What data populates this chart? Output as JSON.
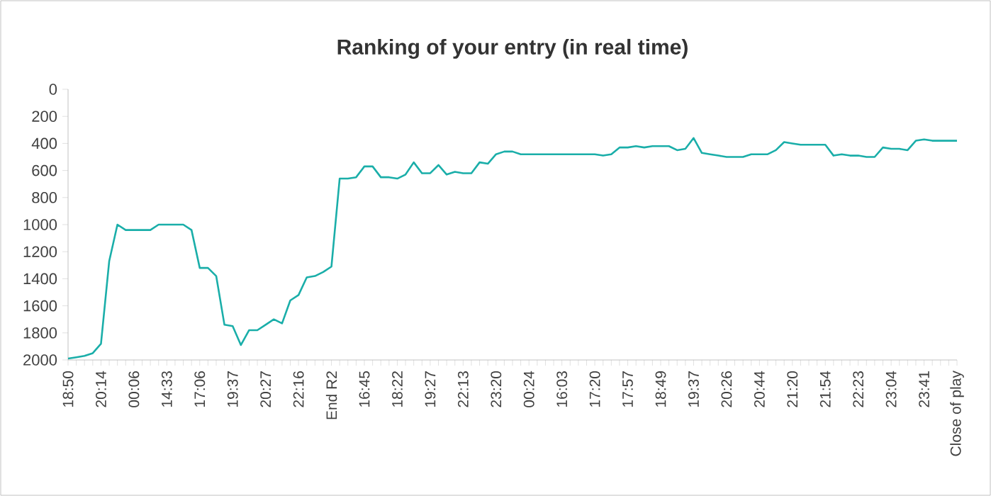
{
  "chart_data": {
    "type": "line",
    "title": "Ranking of your entry (in real time)",
    "categories": [
      "18:50",
      null,
      null,
      null,
      "20:14",
      null,
      null,
      null,
      "00:06",
      null,
      null,
      null,
      "14:33",
      null,
      null,
      null,
      "17:06",
      null,
      null,
      null,
      "19:37",
      null,
      null,
      null,
      "20:27",
      null,
      null,
      null,
      "22:16",
      null,
      null,
      null,
      "End R2",
      null,
      null,
      null,
      "16:45",
      null,
      null,
      null,
      "18:22",
      null,
      null,
      null,
      "19:27",
      null,
      null,
      null,
      "22:13",
      null,
      null,
      null,
      "23:20",
      null,
      null,
      null,
      "00:24",
      null,
      null,
      null,
      "16:03",
      null,
      null,
      null,
      "17:20",
      null,
      null,
      null,
      "17:57",
      null,
      null,
      null,
      "18:49",
      null,
      null,
      null,
      "19:37",
      null,
      null,
      null,
      "20:26",
      null,
      null,
      null,
      "20:44",
      null,
      null,
      null,
      "21:20",
      null,
      null,
      null,
      "21:54",
      null,
      null,
      null,
      "22:23",
      null,
      null,
      null,
      "23:04",
      null,
      null,
      null,
      "23:41",
      null,
      null,
      null,
      "Close of play"
    ],
    "values": [
      1990,
      1980,
      1970,
      1950,
      1880,
      1270,
      1000,
      1040,
      1040,
      1040,
      1040,
      1000,
      1000,
      1000,
      1000,
      1040,
      1320,
      1320,
      1380,
      1740,
      1750,
      1890,
      1780,
      1780,
      1740,
      1700,
      1730,
      1560,
      1520,
      1390,
      1380,
      1350,
      1310,
      660,
      660,
      650,
      570,
      570,
      650,
      650,
      660,
      630,
      540,
      620,
      620,
      560,
      630,
      610,
      620,
      620,
      540,
      550,
      480,
      460,
      460,
      480,
      480,
      480,
      480,
      480,
      480,
      480,
      480,
      480,
      480,
      490,
      480,
      430,
      430,
      420,
      430,
      420,
      420,
      420,
      450,
      440,
      360,
      470,
      480,
      490,
      500,
      500,
      500,
      480,
      480,
      480,
      450,
      390,
      400,
      410,
      410,
      410,
      410,
      490,
      480,
      490,
      490,
      500,
      500,
      430,
      440,
      440,
      450,
      380,
      370,
      380,
      380,
      380,
      380
    ],
    "color": "#1aaea9",
    "ylim": [
      2000,
      0
    ],
    "yticks": [
      0,
      200,
      400,
      600,
      800,
      1000,
      1200,
      1400,
      1600,
      1800,
      2000
    ],
    "grid": false,
    "marker": "none",
    "line_style": "solid"
  }
}
